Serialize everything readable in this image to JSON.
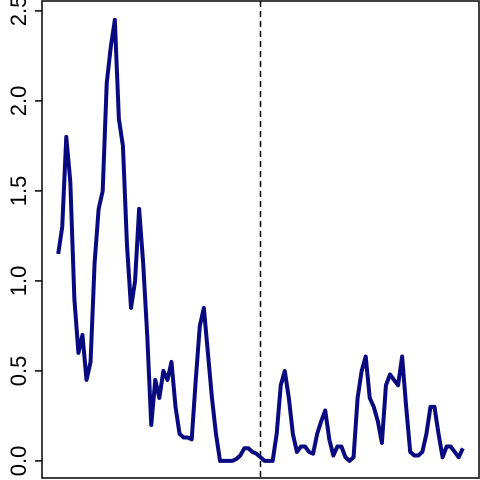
{
  "chart_data": {
    "type": "line",
    "x": [
      0,
      1,
      2,
      3,
      4,
      5,
      6,
      7,
      8,
      9,
      10,
      11,
      12,
      13,
      14,
      15,
      16,
      17,
      18,
      19,
      20,
      21,
      22,
      23,
      24,
      25,
      26,
      27,
      28,
      29,
      30,
      31,
      32,
      33,
      34,
      35,
      36,
      37,
      38,
      39,
      40,
      41,
      42,
      43,
      44,
      45,
      46,
      47,
      48,
      49,
      50,
      51,
      52,
      53,
      54,
      55,
      56,
      57,
      58,
      59,
      60,
      61,
      62,
      63,
      64,
      65,
      66,
      67,
      68,
      69,
      70,
      71,
      72,
      73,
      74,
      75,
      76,
      77,
      78,
      79,
      80,
      81,
      82,
      83,
      84,
      85,
      86,
      87,
      88,
      89,
      90,
      91,
      92,
      93,
      94,
      95,
      96,
      97,
      98,
      99,
      100
    ],
    "series": [
      {
        "color": "#0a0a80",
        "values": [
          1.15,
          1.3,
          1.8,
          1.55,
          0.9,
          0.6,
          0.7,
          0.45,
          0.55,
          1.1,
          1.4,
          1.5,
          2.1,
          2.3,
          2.45,
          1.9,
          1.75,
          1.2,
          0.85,
          1.0,
          1.4,
          1.1,
          0.7,
          0.2,
          0.45,
          0.35,
          0.5,
          0.45,
          0.55,
          0.3,
          0.15,
          0.13,
          0.13,
          0.12,
          0.45,
          0.75,
          0.85,
          0.6,
          0.35,
          0.15,
          0,
          0,
          0,
          0,
          0.01,
          0.03,
          0.07,
          0.07,
          0.05,
          0.04,
          0.02,
          0,
          0,
          0,
          0.15,
          0.42,
          0.5,
          0.35,
          0.15,
          0.05,
          0.08,
          0.08,
          0.05,
          0.04,
          0.15,
          0.22,
          0.28,
          0.12,
          0.03,
          0.08,
          0.08,
          0.02,
          0,
          0.02,
          0.35,
          0.5,
          0.58,
          0.35,
          0.3,
          0.22,
          0.1,
          0.42,
          0.48,
          0.45,
          0.42,
          0.58,
          0.3,
          0.05,
          0.03,
          0.03,
          0.05,
          0.15,
          0.3,
          0.3,
          0.15,
          0.02,
          0.08,
          0.08,
          0.05,
          0.02,
          0.07
        ]
      }
    ],
    "xlim": [
      -4,
      104
    ],
    "ylim": [
      -0.095,
      2.555
    ],
    "yticks": [
      {
        "value": 0,
        "label": "0.0"
      },
      {
        "value": 0.5,
        "label": "0.5"
      },
      {
        "value": 1,
        "label": "1.0"
      },
      {
        "value": 1.5,
        "label": "1.5"
      },
      {
        "value": 2,
        "label": "2.0"
      },
      {
        "value": 2.5,
        "label": "2.5"
      }
    ],
    "vline": 50
  }
}
